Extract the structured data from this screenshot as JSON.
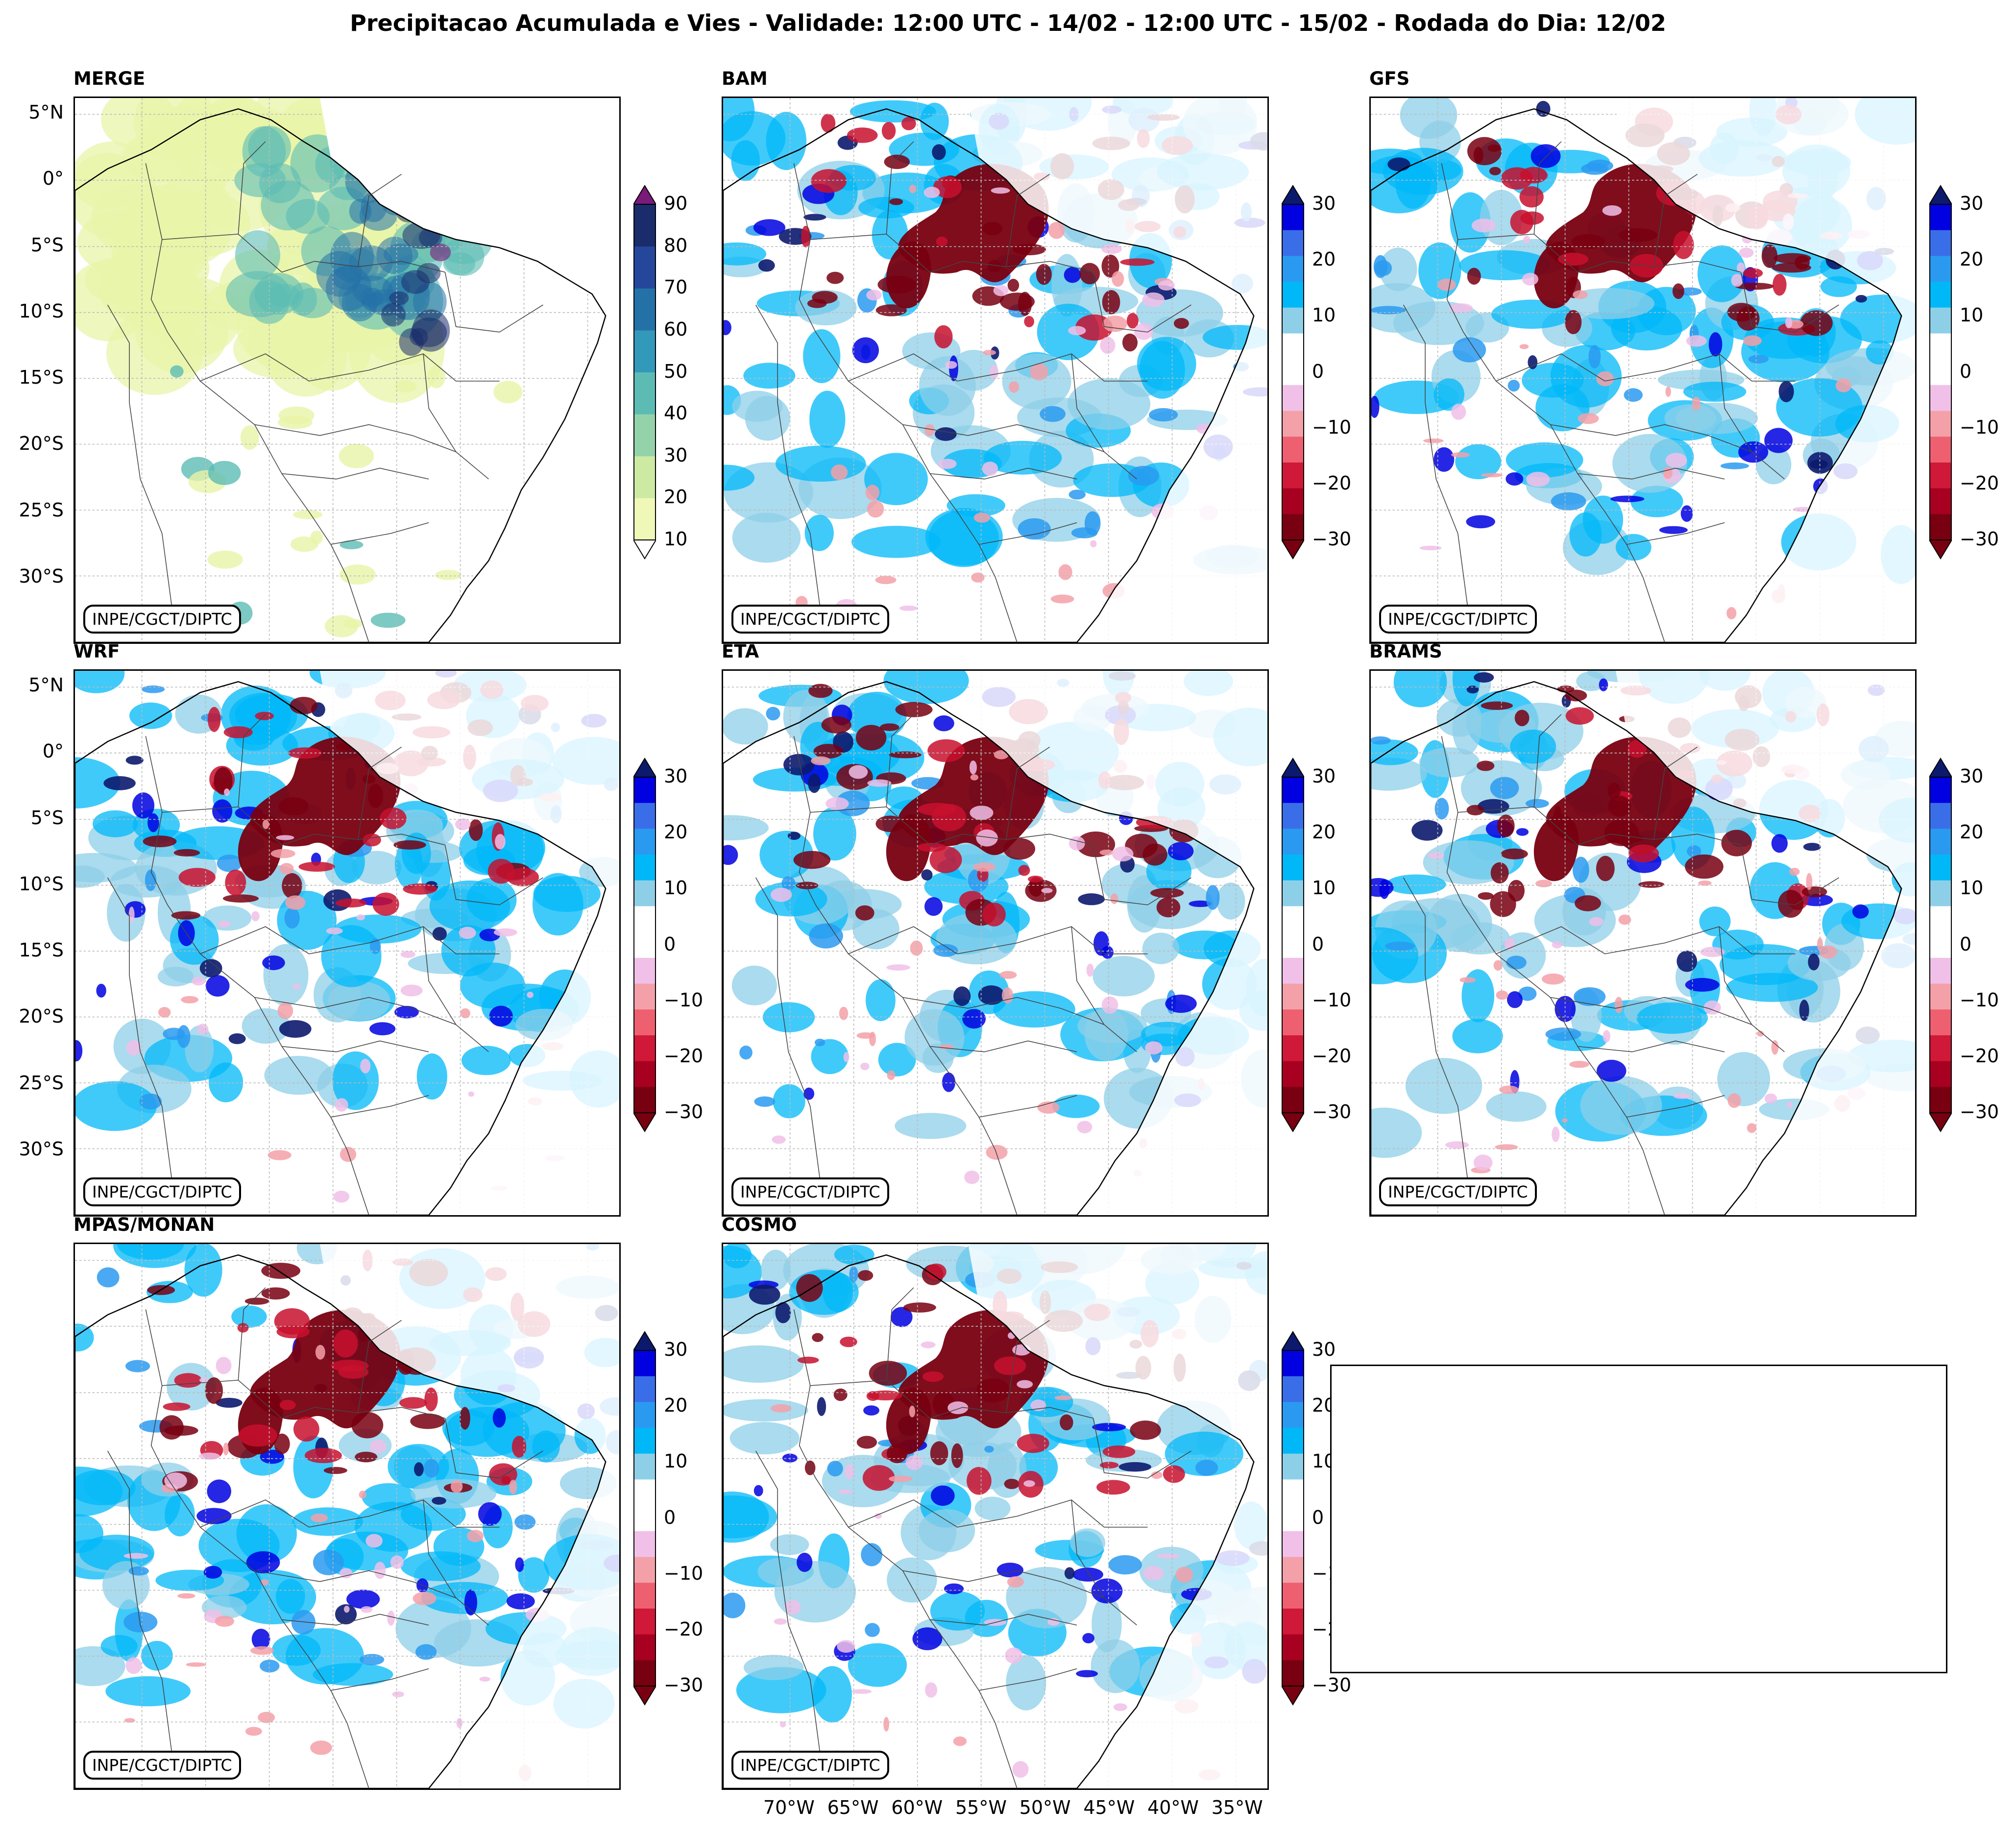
{
  "title": "Precipitacao Acumulada e Vies - Validade: 12:00 UTC - 14/02 - 12:00 UTC - 15/02 - Rodada do Dia: 12/02",
  "credit": "INPE/CGCT/DIPTC",
  "lat_labels": [
    "5°N",
    "0°",
    "5°S",
    "10°S",
    "15°S",
    "20°S",
    "25°S",
    "30°S"
  ],
  "lon_labels": [
    "70°W",
    "65°W",
    "60°W",
    "55°W",
    "50°W",
    "45°W",
    "40°W",
    "35°W"
  ],
  "panels": [
    {
      "name": "MERGE",
      "kind": "precip"
    },
    {
      "name": "BAM",
      "kind": "bias"
    },
    {
      "name": "GFS",
      "kind": "bias"
    },
    {
      "name": "WRF",
      "kind": "bias"
    },
    {
      "name": "ETA",
      "kind": "bias"
    },
    {
      "name": "BRAMS",
      "kind": "bias"
    },
    {
      "name": "MPAS/MONAN",
      "kind": "bias"
    },
    {
      "name": "COSMO",
      "kind": "bias"
    }
  ],
  "precip_colorbar": {
    "ticks": [
      "10",
      "20",
      "30",
      "40",
      "50",
      "60",
      "70",
      "80",
      "90"
    ],
    "colors": [
      "#f0f8b8",
      "#cdeaa3",
      "#94d3a9",
      "#5cbcb4",
      "#3399bb",
      "#2471a8",
      "#25479b",
      "#1a2c6b",
      "#0c1640"
    ],
    "extend_max_color": "#7a1a7a"
  },
  "bias_colorbar": {
    "ticks": [
      "30",
      "20",
      "10",
      "0",
      "−10",
      "−20",
      "−30"
    ],
    "colors_top_to_bottom": [
      "#0000e0",
      "#3a6ee8",
      "#2a9af0",
      "#00b8f8",
      "#8ecfe8",
      "#ffffff",
      "#ffffff",
      "#f0c0e8",
      "#f4a0a8",
      "#ee6070",
      "#d01838",
      "#a80020",
      "#780010"
    ],
    "extend_max_color": "#0c1a6e",
    "extend_min_color": "#780010"
  },
  "bias_palette": {
    "strong_neg": "#780010",
    "neg": "#c8102e",
    "weak_neg": "#f4a0a8",
    "very_weak_neg": "#f0c0e8",
    "weak_pos": "#8ecfe8",
    "pos": "#00b8f8",
    "mid_pos": "#2a9af0",
    "strong_pos": "#0000e0",
    "very_strong_pos": "#0c1a6e"
  },
  "precip_palette": {
    "light": "#e8f4a8",
    "mid": "#5cbcb4",
    "strong": "#2471a8",
    "very_strong": "#1a2c6b",
    "extreme": "#7a1a7a"
  }
}
